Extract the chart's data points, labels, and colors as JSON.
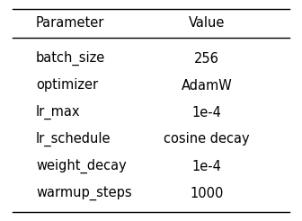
{
  "columns": [
    "Parameter",
    "Value"
  ],
  "rows": [
    [
      "batch_size",
      "256"
    ],
    [
      "optimizer",
      "AdamW"
    ],
    [
      "lr_max",
      "1e-4"
    ],
    [
      "lr_schedule",
      "cosine decay"
    ],
    [
      "weight_decay",
      "1e-4"
    ],
    [
      "warmup_steps",
      "1000"
    ]
  ],
  "background_color": "#ffffff",
  "header_fontsize": 10.5,
  "cell_fontsize": 10.5,
  "text_color": "#000000",
  "line_color": "#000000"
}
